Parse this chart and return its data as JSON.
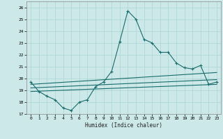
{
  "xlabel": "Humidex (Indice chaleur)",
  "xlim": [
    -0.5,
    23.5
  ],
  "ylim": [
    17,
    26.5
  ],
  "yticks": [
    17,
    18,
    19,
    20,
    21,
    22,
    23,
    24,
    25,
    26
  ],
  "xticks": [
    0,
    1,
    2,
    3,
    4,
    5,
    6,
    7,
    8,
    9,
    10,
    11,
    12,
    13,
    14,
    15,
    16,
    17,
    18,
    19,
    20,
    21,
    22,
    23
  ],
  "bg_color": "#cce8e8",
  "line_color": "#1a6b6b",
  "grid_color": "#aad4d4",
  "main_line_x": [
    0,
    1,
    2,
    3,
    4,
    5,
    6,
    7,
    8,
    9,
    10,
    11,
    12,
    13,
    14,
    15,
    16,
    17,
    18,
    19,
    20,
    21,
    22,
    23
  ],
  "main_line_y": [
    19.7,
    18.9,
    18.5,
    18.2,
    17.5,
    17.3,
    18.0,
    18.2,
    19.3,
    19.7,
    20.6,
    23.1,
    25.7,
    25.0,
    23.3,
    23.0,
    22.2,
    22.2,
    21.3,
    20.9,
    20.8,
    21.1,
    19.5,
    19.7
  ],
  "smooth_line1_x": [
    0,
    23
  ],
  "smooth_line1_y": [
    19.5,
    20.5
  ],
  "smooth_line2_x": [
    0,
    23
  ],
  "smooth_line2_y": [
    19.2,
    19.9
  ],
  "smooth_line3_x": [
    0,
    23
  ],
  "smooth_line3_y": [
    18.9,
    19.5
  ]
}
